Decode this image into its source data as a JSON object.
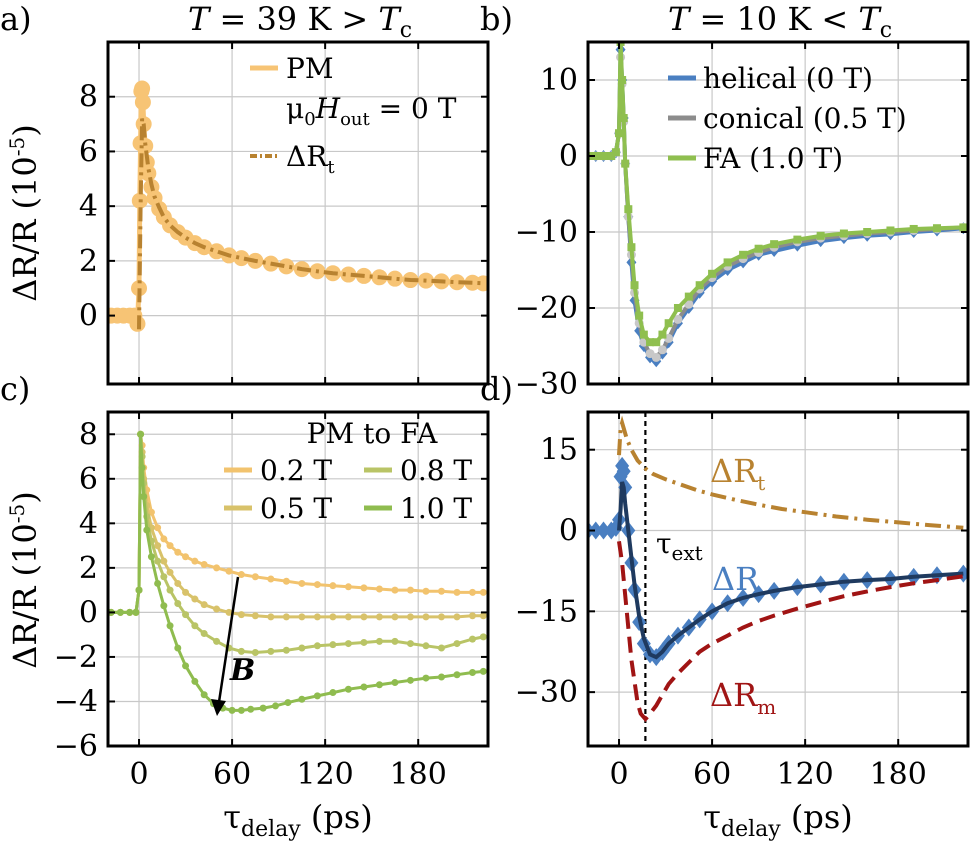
{
  "figure": {
    "panel_labels": [
      "a)",
      "b)",
      "c)",
      "d)"
    ],
    "titles": [
      "T = 39 K > T",
      "T = 10 K < T"
    ],
    "title_sub": "c",
    "ylabel_main": "ΔR/R (10",
    "ylabel_exp": "-5",
    "ylabel_close": ")",
    "xlabel_main": "τ",
    "xlabel_sub": "delay",
    "xlabel_unit": " (ps)",
    "arrow_label": "B",
    "tau_ext_main": "τ",
    "tau_ext_sub": "ext"
  },
  "colors": {
    "pm": "#f7c475",
    "dRt": "#b88230",
    "helical": "#4a7fc1",
    "conical": "#8c8c8c",
    "conical_marker": "#c8c8c8",
    "fa": "#8fbf4f",
    "b02": "#f2c36e",
    "b05": "#d8c26a",
    "b08": "#b9c466",
    "b10": "#8fbc4f",
    "dR": "#4a7fc1",
    "dR_fit": "#1f3a5f",
    "dRm": "#a01414",
    "grid": "#c8c8c8"
  },
  "chart_data": [
    {
      "panel": "a)",
      "type": "line",
      "title": "T = 39 K > Tc",
      "xlabel": "τdelay (ps)",
      "ylabel": "ΔR/R (10^-5)",
      "xlim": [
        -20,
        225
      ],
      "ylim": [
        -2.5,
        10
      ],
      "xticks": [
        0,
        60,
        120,
        180
      ],
      "yticks": [
        0,
        2,
        4,
        6,
        8
      ],
      "legend": [
        "PM",
        "μ0Hout = 0 T",
        "ΔRt"
      ],
      "series": [
        {
          "name": "PM",
          "style": "markers",
          "x": [
            -18,
            -14,
            -10,
            -6,
            -3,
            -1,
            0,
            0.5,
            1,
            1.5,
            2,
            2.5,
            3,
            4,
            5,
            6,
            8,
            10,
            13,
            16,
            20,
            25,
            30,
            36,
            42,
            50,
            58,
            66,
            75,
            85,
            95,
            105,
            115,
            125,
            135,
            145,
            155,
            165,
            175,
            185,
            195,
            205,
            215,
            222
          ],
          "y": [
            0,
            0,
            0,
            0,
            0,
            -0.3,
            1,
            4.2,
            6.3,
            8.2,
            8.3,
            7.8,
            7,
            6.2,
            5.6,
            5.2,
            4.7,
            4.3,
            3.9,
            3.6,
            3.3,
            3.05,
            2.85,
            2.65,
            2.5,
            2.35,
            2.2,
            2.1,
            2.0,
            1.9,
            1.8,
            1.7,
            1.62,
            1.55,
            1.5,
            1.45,
            1.4,
            1.35,
            1.3,
            1.28,
            1.25,
            1.22,
            1.2,
            1.18
          ]
        },
        {
          "name": "ΔRt",
          "style": "dashdot",
          "x": [
            0,
            1,
            2,
            3,
            4,
            6,
            8,
            10,
            13,
            16,
            20,
            25,
            30,
            36,
            42,
            50,
            58,
            66,
            75,
            85,
            95,
            105,
            115,
            125,
            135,
            145,
            155,
            165,
            175,
            185,
            195,
            205,
            215,
            222
          ],
          "y": [
            -0.5,
            4,
            7.2,
            7.0,
            6.3,
            5.4,
            4.8,
            4.35,
            3.95,
            3.6,
            3.3,
            3.05,
            2.85,
            2.65,
            2.5,
            2.35,
            2.2,
            2.1,
            2.0,
            1.9,
            1.8,
            1.7,
            1.62,
            1.55,
            1.5,
            1.45,
            1.4,
            1.35,
            1.3,
            1.28,
            1.25,
            1.22,
            1.2,
            1.18
          ]
        }
      ]
    },
    {
      "panel": "b)",
      "type": "line",
      "title": "T = 10 K < Tc",
      "xlabel": "τdelay (ps)",
      "ylabel": "ΔR/R (10^-5)",
      "xlim": [
        -20,
        225
      ],
      "ylim": [
        -30,
        15
      ],
      "xticks": [
        0,
        60,
        120,
        180
      ],
      "yticks": [
        -30,
        -20,
        -10,
        0,
        10
      ],
      "legend": [
        "helical (0 T)",
        "conical (0.5 T)",
        "FA (1.0 T)"
      ],
      "series": [
        {
          "name": "helical (0 T)",
          "x": [
            -20,
            -15,
            -10,
            -5,
            -2,
            0,
            1,
            2,
            3,
            4,
            6,
            8,
            10,
            13,
            16,
            20,
            24,
            28,
            32,
            38,
            45,
            52,
            60,
            70,
            80,
            90,
            100,
            115,
            130,
            145,
            160,
            175,
            190,
            205,
            222
          ],
          "y": [
            0,
            0,
            0,
            0,
            0.5,
            3,
            14,
            10,
            5,
            -1,
            -8,
            -14,
            -19,
            -23,
            -25,
            -26.5,
            -27,
            -26,
            -24.5,
            -22,
            -20,
            -18,
            -16.5,
            -15,
            -14,
            -13,
            -12.5,
            -11.8,
            -11.2,
            -10.8,
            -10.5,
            -10.3,
            -10,
            -9.8,
            -9.5
          ]
        },
        {
          "name": "conical (0.5 T)",
          "x": [
            -20,
            -15,
            -10,
            -5,
            -2,
            0,
            1,
            2,
            3,
            4,
            6,
            8,
            10,
            13,
            16,
            20,
            24,
            28,
            32,
            38,
            45,
            52,
            60,
            70,
            80,
            90,
            100,
            115,
            130,
            145,
            160,
            175,
            190,
            205,
            222
          ],
          "y": [
            0,
            0,
            0,
            0,
            0.5,
            3,
            13,
            9.5,
            4.5,
            -1,
            -8,
            -13,
            -18,
            -22,
            -24.5,
            -26,
            -26.5,
            -25.5,
            -24,
            -21.5,
            -19.5,
            -17.5,
            -16,
            -14.5,
            -13.5,
            -12.7,
            -12,
            -11.3,
            -10.8,
            -10.5,
            -10.2,
            -10,
            -9.8,
            -9.6,
            -9.4
          ]
        },
        {
          "name": "FA (1.0 T)",
          "x": [
            -20,
            -15,
            -10,
            -5,
            -2,
            0,
            1,
            2,
            3,
            4,
            6,
            8,
            10,
            13,
            16,
            20,
            24,
            28,
            32,
            38,
            45,
            52,
            60,
            70,
            80,
            90,
            100,
            115,
            130,
            145,
            160,
            175,
            190,
            205,
            222
          ],
          "y": [
            0,
            0,
            0,
            0,
            0.5,
            3,
            15,
            10,
            5,
            -1,
            -7,
            -12,
            -17,
            -21,
            -23.5,
            -24.5,
            -24.5,
            -23.5,
            -22,
            -20,
            -18.5,
            -17,
            -15.5,
            -14,
            -13,
            -12.2,
            -11.6,
            -11,
            -10.5,
            -10.2,
            -10,
            -9.8,
            -9.6,
            -9.5,
            -9.4
          ]
        }
      ]
    },
    {
      "panel": "c)",
      "type": "line",
      "xlabel": "τdelay (ps)",
      "ylabel": "ΔR/R (10^-5)",
      "xlim": [
        -20,
        225
      ],
      "ylim": [
        -6,
        9
      ],
      "xticks": [
        0,
        60,
        120,
        180
      ],
      "yticks": [
        -6,
        -4,
        -2,
        0,
        2,
        4,
        6,
        8
      ],
      "legend_title": "PM to FA",
      "legend": [
        "0.2 T",
        "0.5 T",
        "0.8 T",
        "1.0 T"
      ],
      "series": [
        {
          "name": "0.2 T",
          "x": [
            -18,
            -12,
            -6,
            -2,
            0,
            1,
            2,
            3,
            5,
            8,
            12,
            16,
            20,
            25,
            30,
            36,
            42,
            50,
            58,
            66,
            75,
            85,
            95,
            105,
            115,
            125,
            135,
            145,
            155,
            165,
            175,
            185,
            195,
            205,
            215,
            222
          ],
          "y": [
            0,
            0,
            0,
            0,
            1,
            8,
            7.5,
            6.5,
            5.5,
            4.5,
            3.8,
            3.3,
            3.0,
            2.7,
            2.5,
            2.3,
            2.15,
            2.0,
            1.85,
            1.7,
            1.6,
            1.5,
            1.4,
            1.3,
            1.25,
            1.2,
            1.15,
            1.1,
            1.05,
            1.0,
            1.0,
            0.95,
            0.95,
            0.9,
            0.9,
            0.9
          ]
        },
        {
          "name": "0.5 T",
          "x": [
            -18,
            -12,
            -6,
            -2,
            0,
            1,
            2,
            3,
            5,
            8,
            12,
            16,
            20,
            25,
            30,
            36,
            42,
            50,
            58,
            66,
            75,
            85,
            95,
            105,
            115,
            125,
            135,
            145,
            155,
            165,
            175,
            185,
            195,
            205,
            215,
            222
          ],
          "y": [
            0,
            0,
            0,
            0,
            1,
            8,
            7.2,
            6,
            4.8,
            3.8,
            3.0,
            2.3,
            1.8,
            1.3,
            0.9,
            0.6,
            0.35,
            0.15,
            0,
            -0.1,
            -0.15,
            -0.2,
            -0.2,
            -0.2,
            -0.2,
            -0.2,
            -0.2,
            -0.2,
            -0.2,
            -0.2,
            -0.2,
            -0.2,
            -0.2,
            -0.2,
            -0.15,
            -0.15
          ]
        },
        {
          "name": "0.8 T",
          "x": [
            -18,
            -12,
            -6,
            -2,
            0,
            1,
            2,
            3,
            5,
            8,
            12,
            16,
            20,
            25,
            30,
            36,
            42,
            50,
            58,
            66,
            75,
            85,
            95,
            105,
            115,
            125,
            135,
            145,
            155,
            165,
            175,
            185,
            195,
            205,
            215,
            222
          ],
          "y": [
            0,
            0,
            0,
            0,
            1,
            8,
            7,
            5.8,
            4.3,
            3.2,
            2.3,
            1.6,
            1.0,
            0.4,
            -0.1,
            -0.6,
            -0.95,
            -1.3,
            -1.6,
            -1.75,
            -1.8,
            -1.75,
            -1.7,
            -1.6,
            -1.5,
            -1.45,
            -1.4,
            -1.35,
            -1.3,
            -1.3,
            -1.4,
            -1.5,
            -1.6,
            -1.4,
            -1.2,
            -1.1
          ]
        },
        {
          "name": "1.0 T",
          "x": [
            -18,
            -12,
            -6,
            -2,
            0,
            1,
            2,
            3,
            5,
            8,
            12,
            16,
            20,
            25,
            30,
            36,
            42,
            48,
            54,
            60,
            66,
            72,
            80,
            88,
            96,
            105,
            115,
            125,
            135,
            145,
            155,
            165,
            175,
            185,
            195,
            205,
            215,
            222
          ],
          "y": [
            0,
            0,
            0,
            0,
            1,
            8,
            6.5,
            5.2,
            3.7,
            2.5,
            1.3,
            0.3,
            -0.6,
            -1.6,
            -2.4,
            -3.1,
            -3.7,
            -4.1,
            -4.3,
            -4.4,
            -4.4,
            -4.35,
            -4.3,
            -4.2,
            -4.05,
            -3.9,
            -3.75,
            -3.6,
            -3.45,
            -3.35,
            -3.25,
            -3.15,
            -3.05,
            -2.95,
            -2.9,
            -2.8,
            -2.7,
            -2.65
          ]
        }
      ],
      "annotation": {
        "text": "B",
        "arrow_from": [
          73,
          1.6
        ],
        "arrow_to": [
          53,
          -4.4
        ]
      }
    },
    {
      "panel": "d)",
      "type": "line",
      "xlabel": "τdelay (ps)",
      "ylabel": "",
      "xlim": [
        -20,
        225
      ],
      "ylim": [
        -40,
        22
      ],
      "xticks": [
        0,
        60,
        120,
        180
      ],
      "yticks": [
        -30,
        -15,
        0,
        15
      ],
      "vline": {
        "x": 17,
        "label": "τext"
      },
      "labels": [
        "ΔRt",
        "ΔR",
        "ΔRm"
      ],
      "series": [
        {
          "name": "ΔRt",
          "style": "dashdot",
          "x": [
            0,
            1,
            2,
            3,
            5,
            8,
            12,
            17,
            22,
            30,
            40,
            50,
            60,
            75,
            90,
            105,
            120,
            140,
            160,
            180,
            200,
            222
          ],
          "y": [
            14,
            19,
            20,
            19,
            17,
            15,
            13,
            11.5,
            10.5,
            9.5,
            8.5,
            7.5,
            6.7,
            5.7,
            4.8,
            4.0,
            3.4,
            2.6,
            2.0,
            1.5,
            1.0,
            0.5
          ]
        },
        {
          "name": "ΔR",
          "style": "markers",
          "x": [
            -20,
            -15,
            -10,
            -5,
            -2,
            0,
            1,
            2,
            3,
            4,
            6,
            8,
            10,
            13,
            16,
            20,
            24,
            28,
            32,
            38,
            45,
            52,
            60,
            70,
            80,
            90,
            100,
            115,
            130,
            145,
            160,
            175,
            190,
            205,
            222
          ],
          "y": [
            0,
            0,
            0,
            0,
            0.5,
            2,
            10,
            12,
            11,
            8,
            0,
            -6,
            -11,
            -17,
            -21,
            -23,
            -23.5,
            -22.5,
            -21,
            -19.5,
            -18,
            -16.5,
            -15,
            -13.5,
            -12.5,
            -11.8,
            -11.2,
            -10.5,
            -10,
            -9.5,
            -9.2,
            -9,
            -8.6,
            -8.3,
            -8
          ]
        },
        {
          "name": "ΔR fit",
          "style": "solid",
          "x": [
            0,
            1,
            2,
            3,
            4,
            6,
            8,
            10,
            13,
            16,
            20,
            24,
            28,
            32,
            38,
            45,
            52,
            60,
            70,
            80,
            90,
            100,
            115,
            130,
            145,
            160,
            175,
            190,
            205,
            222
          ],
          "y": [
            0,
            4,
            9,
            8,
            5,
            0,
            -5,
            -10,
            -16,
            -20,
            -23,
            -23.5,
            -22.5,
            -21,
            -19.5,
            -18,
            -16.5,
            -15,
            -13.5,
            -12.5,
            -11.8,
            -11.2,
            -10.5,
            -10,
            -9.5,
            -9.2,
            -9,
            -8.6,
            -8.3,
            -8
          ]
        },
        {
          "name": "ΔRm",
          "style": "dashed",
          "x": [
            0,
            2,
            4,
            6,
            8,
            10,
            12,
            14,
            17,
            20,
            24,
            28,
            32,
            38,
            45,
            52,
            60,
            70,
            80,
            90,
            100,
            115,
            130,
            145,
            160,
            175,
            190,
            205,
            222
          ],
          "y": [
            -2,
            -6,
            -12,
            -18,
            -24,
            -28,
            -32,
            -34,
            -35,
            -34,
            -32.5,
            -30.5,
            -28.5,
            -26.5,
            -24.5,
            -22.5,
            -21,
            -19.5,
            -18,
            -16.8,
            -15.8,
            -14.5,
            -13.3,
            -12.2,
            -11.3,
            -10.5,
            -9.8,
            -9.2,
            -8.5
          ]
        }
      ]
    }
  ]
}
